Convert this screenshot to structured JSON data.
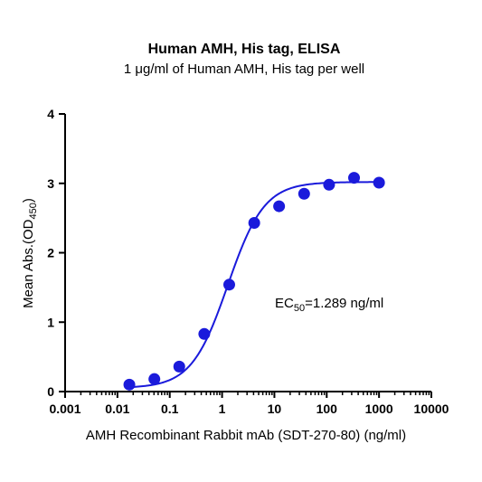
{
  "chart_data": {
    "type": "scatter",
    "title": "Human AMH, His tag, ELISA",
    "subtitle": "1 μg/ml of Human AMH, His tag per well",
    "xlabel": "AMH Recombinant Rabbit mAb (SDT-270-80) (ng/ml)",
    "ylabel_main": "Mean Abs.(OD",
    "ylabel_sub": "450",
    "ylabel_end": ")",
    "x_scale": "log",
    "xlim": [
      0.001,
      10000
    ],
    "ylim": [
      0,
      4
    ],
    "x_ticks": [
      {
        "value": 0.001,
        "label": "0.001"
      },
      {
        "value": 0.01,
        "label": "0.01"
      },
      {
        "value": 0.1,
        "label": "0.1"
      },
      {
        "value": 1,
        "label": "1"
      },
      {
        "value": 10,
        "label": "10"
      },
      {
        "value": 100,
        "label": "100"
      },
      {
        "value": 1000,
        "label": "1000"
      },
      {
        "value": 10000,
        "label": "10000"
      }
    ],
    "y_ticks": [
      {
        "value": 0,
        "label": "0"
      },
      {
        "value": 1,
        "label": "1"
      },
      {
        "value": 2,
        "label": "2"
      },
      {
        "value": 3,
        "label": "3"
      },
      {
        "value": 4,
        "label": "4"
      }
    ],
    "series": [
      {
        "color": "#1a1adb",
        "x": [
          0.0169,
          0.0508,
          0.152,
          0.457,
          1.37,
          4.12,
          12.3,
          37.0,
          111,
          333,
          1000
        ],
        "y": [
          0.1,
          0.18,
          0.36,
          0.83,
          1.54,
          2.43,
          2.67,
          2.85,
          2.98,
          3.08,
          3.01
        ]
      }
    ],
    "fit": {
      "model": "4PL",
      "bottom": 0.05,
      "top": 3.02,
      "ec50": 1.289,
      "hill": 1.25,
      "x_range": [
        0.0169,
        1000
      ]
    },
    "annotation": {
      "main": "EC",
      "sub": "50",
      "rest": "=1.289 ng/ml",
      "x": 1.289
    },
    "grid": false,
    "legend": "none"
  }
}
